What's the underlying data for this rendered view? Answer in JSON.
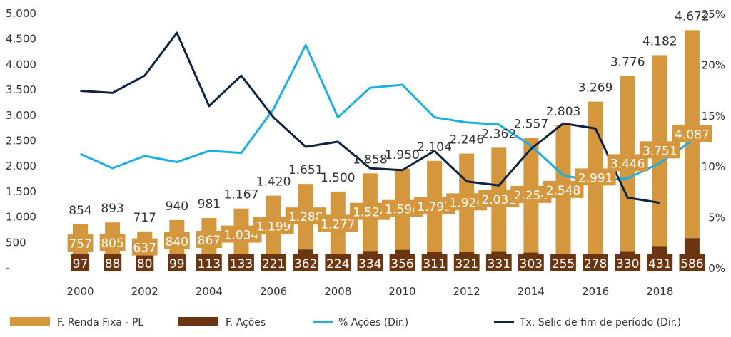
{
  "chart_data": {
    "type": "bar",
    "x": [
      "2000",
      "2001",
      "2002",
      "2003",
      "2004",
      "2005",
      "2006",
      "2007",
      "2008",
      "2009",
      "2010",
      "2011",
      "2012",
      "2013",
      "2014",
      "2015",
      "2016",
      "2017",
      "2018",
      "2019"
    ],
    "x_tick_labels": [
      "2000",
      "2002",
      "2004",
      "2006",
      "2008",
      "2010",
      "2012",
      "2014",
      "2016",
      "2018"
    ],
    "left_axis": {
      "ticks": [
        "5.000",
        "4.500",
        "4.000",
        "3.500",
        "3.000",
        "2.500",
        "2.000",
        "1.500",
        "1.000",
        "500",
        "-"
      ],
      "range": [
        0,
        5000
      ]
    },
    "right_axis": {
      "ticks": [
        "25%",
        "20%",
        "15%",
        "10%",
        "5%",
        "0%"
      ],
      "range": [
        0,
        25
      ]
    },
    "series": [
      {
        "name": "F. Renda Fixa - PL",
        "kind": "bar",
        "axis": "left",
        "color": "#D4973E",
        "values": [
          757,
          805,
          637,
          840,
          867,
          1034,
          1199,
          1288,
          1277,
          1524,
          1594,
          1793,
          1926,
          2031,
          2254,
          2548,
          2991,
          3446,
          3751,
          4087
        ],
        "labels": [
          "757",
          "805",
          "637",
          "840",
          "867",
          "1.034",
          "1.199",
          "1.288",
          "1.277",
          "1.524",
          "1.594",
          "1.793",
          "1.926",
          "2.031",
          "2.254",
          "2.548",
          "2.991",
          "3.446",
          "3.751",
          "4.087"
        ]
      },
      {
        "name": "F. Ações",
        "kind": "bar",
        "axis": "left",
        "color": "#6B3512",
        "values": [
          97,
          88,
          80,
          99,
          113,
          133,
          221,
          362,
          224,
          334,
          356,
          311,
          321,
          331,
          303,
          255,
          278,
          330,
          431,
          586
        ],
        "labels": [
          "97",
          "88",
          "80",
          "99",
          "113",
          "133",
          "221",
          "362",
          "224",
          "334",
          "356",
          "311",
          "321",
          "331",
          "303",
          "255",
          "278",
          "330",
          "431",
          "586"
        ]
      },
      {
        "name": "% Ações (Dir.)",
        "kind": "line",
        "axis": "right",
        "color": "#1BB0E3",
        "values": [
          11.2,
          9.8,
          11.0,
          10.4,
          11.5,
          11.3,
          15.6,
          21.9,
          14.8,
          17.7,
          18.0,
          14.8,
          14.3,
          14.1,
          12.0,
          9.1,
          8.5,
          8.8,
          10.3,
          12.5
        ]
      },
      {
        "name": "Tx. Selic de fim de período (Dir.)",
        "kind": "line",
        "axis": "right",
        "color": "#0F2340",
        "values": [
          17.4,
          17.2,
          18.9,
          23.1,
          15.9,
          18.9,
          14.8,
          11.9,
          12.4,
          9.8,
          9.6,
          11.5,
          8.5,
          8.1,
          11.7,
          14.2,
          13.7,
          6.9,
          6.4,
          null
        ]
      }
    ],
    "totals": [
      "854",
      "893",
      "717",
      "940",
      "981",
      "1.167",
      "1.420",
      "1.651",
      "1.500",
      "1.858",
      "1.950",
      "2.104",
      "2.246",
      "2.362",
      "2.557",
      "2.803",
      "3.269",
      "3.776",
      "4.182",
      "4.672"
    ],
    "totals_values": [
      854,
      893,
      717,
      940,
      981,
      1167,
      1420,
      1651,
      1500,
      1858,
      1950,
      2104,
      2246,
      2362,
      2557,
      2803,
      3269,
      3776,
      4182,
      4672
    ],
    "legend_position": "bottom",
    "grid": false
  },
  "legend": [
    {
      "label": "F. Renda Fixa - PL",
      "color": "#D4973E",
      "shape": "box"
    },
    {
      "label": "F. Ações",
      "color": "#6B3512",
      "shape": "box"
    },
    {
      "label": "% Ações (Dir.)",
      "color": "#1BB0E3",
      "shape": "line"
    },
    {
      "label": "Tx. Selic de fim de período (Dir.)",
      "color": "#0F2340",
      "shape": "line"
    }
  ]
}
